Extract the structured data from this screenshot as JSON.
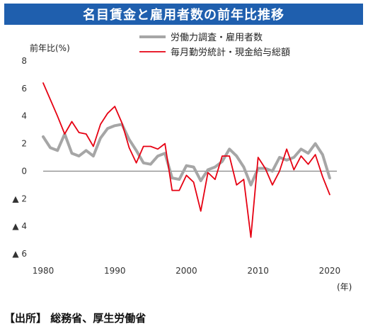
{
  "title": "名目賃金と雇用者数の前年比推移",
  "source": "【出所】 総務省、厚生労働省",
  "chart_data": {
    "type": "line",
    "ylabel": "前年比(%)",
    "xlabel": "(年)",
    "xlim": [
      1980,
      2021
    ],
    "ylim": [
      -6,
      8
    ],
    "y_ticks": [
      8,
      6,
      4,
      2,
      0,
      -2,
      -4,
      -6
    ],
    "y_tick_labels": [
      "8",
      "6",
      "4",
      "2",
      "0",
      "▲ 2",
      "▲ 4",
      "▲ 6"
    ],
    "x_ticks": [
      1980,
      1990,
      2000,
      2010,
      2020
    ],
    "x_tick_labels": [
      "1980",
      "1990",
      "2000",
      "2010",
      "2020"
    ],
    "legend_position": "top-right",
    "grid": false,
    "series": [
      {
        "name": "労働力調査・雇用者数",
        "color": "#a6a6a6",
        "x": [
          1980,
          1981,
          1982,
          1983,
          1984,
          1985,
          1986,
          1987,
          1988,
          1989,
          1990,
          1991,
          1992,
          1993,
          1994,
          1995,
          1996,
          1997,
          1998,
          1999,
          2000,
          2001,
          2002,
          2003,
          2004,
          2005,
          2006,
          2007,
          2008,
          2009,
          2010,
          2011,
          2012,
          2013,
          2014,
          2015,
          2016,
          2017,
          2018,
          2019,
          2020
        ],
        "values": [
          2.5,
          1.7,
          1.5,
          2.7,
          1.3,
          1.1,
          1.5,
          1.1,
          2.4,
          3.1,
          3.3,
          3.4,
          2.3,
          1.5,
          0.6,
          0.5,
          1.1,
          1.3,
          -0.5,
          -0.6,
          0.4,
          0.3,
          -0.7,
          0.1,
          0.3,
          0.7,
          1.6,
          1.1,
          0.3,
          -1.0,
          0.2,
          0.2,
          0.0,
          1.0,
          0.8,
          1.0,
          1.6,
          1.3,
          2.0,
          1.2,
          -0.5
        ]
      },
      {
        "name": "毎月勤労統計・現金給与総額",
        "color": "#e60012",
        "x": [
          1980,
          1981,
          1982,
          1983,
          1984,
          1985,
          1986,
          1987,
          1988,
          1989,
          1990,
          1991,
          1992,
          1993,
          1994,
          1995,
          1996,
          1997,
          1998,
          1999,
          2000,
          2001,
          2002,
          2003,
          2004,
          2005,
          2006,
          2007,
          2008,
          2009,
          2010,
          2011,
          2012,
          2013,
          2014,
          2015,
          2016,
          2017,
          2018,
          2019,
          2020
        ],
        "values": [
          6.4,
          5.2,
          4.0,
          2.7,
          3.6,
          2.8,
          2.7,
          1.8,
          3.4,
          4.2,
          4.7,
          3.5,
          1.7,
          0.6,
          1.8,
          1.8,
          1.6,
          2.0,
          -1.4,
          -1.4,
          -0.3,
          -0.8,
          -2.9,
          -0.1,
          -0.6,
          1.1,
          1.1,
          -1.0,
          -0.6,
          -4.8,
          1.0,
          0.2,
          -1.0,
          0.0,
          1.6,
          0.1,
          1.1,
          0.5,
          1.2,
          -0.4,
          -1.7
        ]
      }
    ]
  }
}
